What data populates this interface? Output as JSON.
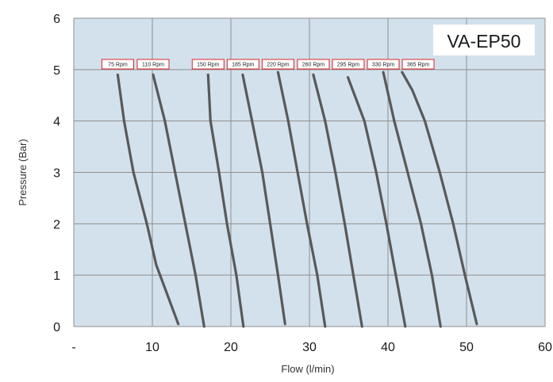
{
  "chart_data": {
    "type": "line",
    "title": "VA-EP50",
    "xlabel": "Flow (l/min)",
    "ylabel": "Pressure (Bar)",
    "xlim": [
      0,
      60
    ],
    "ylim": [
      0,
      6
    ],
    "x_ticks": [
      "-",
      "10",
      "20",
      "30",
      "40",
      "50",
      "60"
    ],
    "y_ticks": [
      "0",
      "1",
      "2",
      "3",
      "4",
      "5",
      "6"
    ],
    "grid": true,
    "colors": {
      "plot_background": "#d3e1ec",
      "grid": "#8f8f8f",
      "curve": "#595959",
      "label_border": "#d9242b"
    },
    "series": [
      {
        "name": "75 Rpm",
        "points": [
          [
            13.3,
            0.05
          ],
          [
            12.2,
            0.5
          ],
          [
            10.5,
            1.2
          ],
          [
            9.3,
            2.0
          ],
          [
            7.6,
            3.0
          ],
          [
            6.4,
            4.0
          ],
          [
            5.6,
            4.9
          ]
        ]
      },
      {
        "name": "110 Rpm",
        "points": [
          [
            16.6,
            0.0
          ],
          [
            15.5,
            1.0
          ],
          [
            14.2,
            2.0
          ],
          [
            12.9,
            3.0
          ],
          [
            11.6,
            4.0
          ],
          [
            10.1,
            4.9
          ]
        ]
      },
      {
        "name": "150 Rpm",
        "points": [
          [
            21.6,
            0.0
          ],
          [
            20.7,
            1.0
          ],
          [
            19.5,
            2.0
          ],
          [
            18.5,
            3.0
          ],
          [
            17.4,
            4.0
          ],
          [
            17.1,
            4.9
          ]
        ]
      },
      {
        "name": "185 Rpm",
        "points": [
          [
            26.9,
            0.05
          ],
          [
            26.0,
            1.0
          ],
          [
            25.0,
            2.0
          ],
          [
            24.0,
            3.0
          ],
          [
            22.7,
            4.0
          ],
          [
            21.5,
            4.9
          ]
        ]
      },
      {
        "name": "220 Rpm",
        "points": [
          [
            32.0,
            0.0
          ],
          [
            31.0,
            1.0
          ],
          [
            29.7,
            2.0
          ],
          [
            28.5,
            3.0
          ],
          [
            27.3,
            4.0
          ],
          [
            26.0,
            4.95
          ]
        ]
      },
      {
        "name": "260 Rpm",
        "points": [
          [
            36.7,
            0.0
          ],
          [
            35.6,
            1.0
          ],
          [
            34.5,
            2.0
          ],
          [
            33.3,
            3.0
          ],
          [
            32.0,
            4.0
          ],
          [
            30.5,
            4.9
          ]
        ]
      },
      {
        "name": "295 Rpm",
        "points": [
          [
            42.2,
            0.0
          ],
          [
            41.0,
            1.0
          ],
          [
            39.8,
            2.0
          ],
          [
            38.5,
            3.0
          ],
          [
            37.0,
            4.0
          ],
          [
            34.9,
            4.85
          ]
        ]
      },
      {
        "name": "330 Rpm",
        "points": [
          [
            46.7,
            0.0
          ],
          [
            45.6,
            1.0
          ],
          [
            44.2,
            2.0
          ],
          [
            42.5,
            3.0
          ],
          [
            40.8,
            4.0
          ],
          [
            39.4,
            4.95
          ]
        ]
      },
      {
        "name": "365 Rpm",
        "points": [
          [
            51.3,
            0.05
          ],
          [
            49.8,
            1.0
          ],
          [
            48.3,
            2.0
          ],
          [
            46.6,
            3.0
          ],
          [
            44.7,
            4.0
          ],
          [
            43.1,
            4.6
          ],
          [
            41.8,
            4.95
          ]
        ]
      }
    ]
  }
}
